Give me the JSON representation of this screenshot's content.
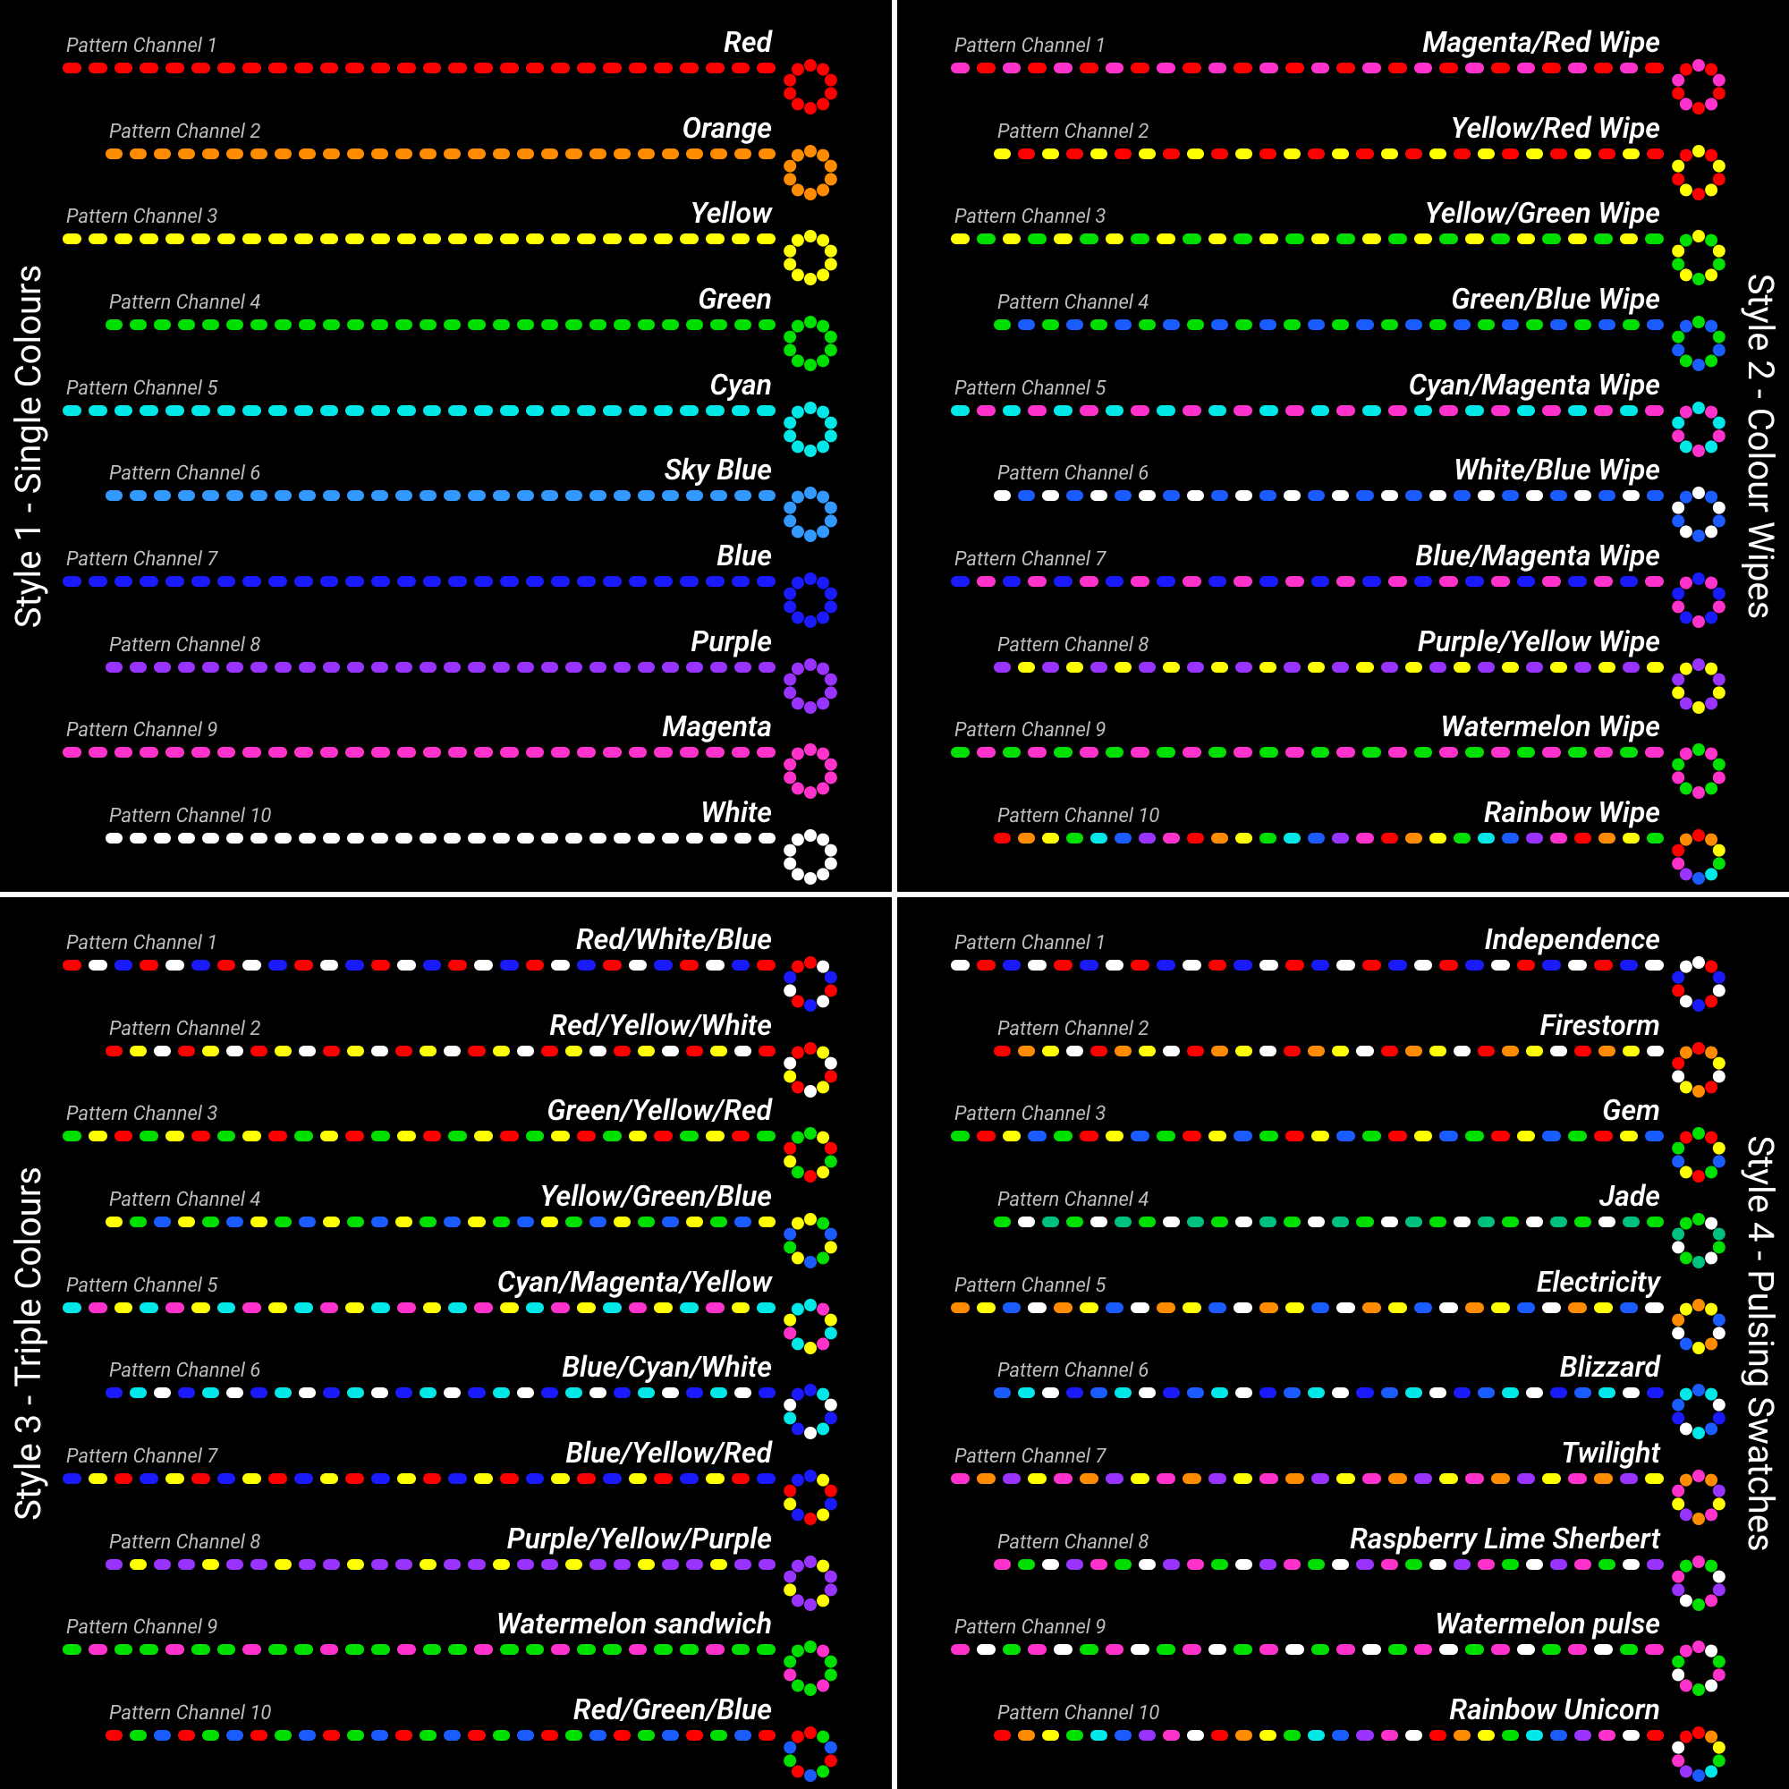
{
  "dashesPerStrip": 28,
  "loopSegments": 10,
  "panels": [
    {
      "id": "style1",
      "title": "Style 1 - Single Colours",
      "labelSide": "left",
      "rows": [
        {
          "channel": "Pattern Channel 1",
          "name": "Red",
          "colors": [
            "#ff0000"
          ]
        },
        {
          "channel": "Pattern Channel 2",
          "name": "Orange",
          "colors": [
            "#ff8c00"
          ]
        },
        {
          "channel": "Pattern Channel 3",
          "name": "Yellow",
          "colors": [
            "#ffff00"
          ]
        },
        {
          "channel": "Pattern Channel 4",
          "name": "Green",
          "colors": [
            "#00e000"
          ]
        },
        {
          "channel": "Pattern Channel 5",
          "name": "Cyan",
          "colors": [
            "#00e8e8"
          ]
        },
        {
          "channel": "Pattern Channel 6",
          "name": "Sky Blue",
          "colors": [
            "#3399ff"
          ]
        },
        {
          "channel": "Pattern Channel 7",
          "name": "Blue",
          "colors": [
            "#1a1aff"
          ]
        },
        {
          "channel": "Pattern Channel 8",
          "name": "Purple",
          "colors": [
            "#9933ff"
          ]
        },
        {
          "channel": "Pattern Channel 9",
          "name": "Magenta",
          "colors": [
            "#ff33cc"
          ]
        },
        {
          "channel": "Pattern Channel 10",
          "name": "White",
          "colors": [
            "#ffffff"
          ]
        }
      ]
    },
    {
      "id": "style2",
      "title": "Style 2 - Colour Wipes",
      "labelSide": "right",
      "rows": [
        {
          "channel": "Pattern Channel 1",
          "name": "Magenta/Red Wipe",
          "colors": [
            "#ff33cc",
            "#ff0000"
          ]
        },
        {
          "channel": "Pattern Channel 2",
          "name": "Yellow/Red Wipe",
          "colors": [
            "#ffff00",
            "#ff0000"
          ]
        },
        {
          "channel": "Pattern Channel 3",
          "name": "Yellow/Green Wipe",
          "colors": [
            "#ffff00",
            "#00e000"
          ]
        },
        {
          "channel": "Pattern Channel 4",
          "name": "Green/Blue Wipe",
          "colors": [
            "#00e000",
            "#1a5cff"
          ]
        },
        {
          "channel": "Pattern Channel 5",
          "name": "Cyan/Magenta Wipe",
          "colors": [
            "#00e8e8",
            "#ff33cc"
          ]
        },
        {
          "channel": "Pattern Channel 6",
          "name": "White/Blue Wipe",
          "colors": [
            "#ffffff",
            "#1a5cff"
          ]
        },
        {
          "channel": "Pattern Channel 7",
          "name": "Blue/Magenta Wipe",
          "colors": [
            "#1a1aff",
            "#ff33cc"
          ]
        },
        {
          "channel": "Pattern Channel 8",
          "name": "Purple/Yellow Wipe",
          "colors": [
            "#9933ff",
            "#ffff00"
          ]
        },
        {
          "channel": "Pattern Channel 9",
          "name": "Watermelon Wipe",
          "colors": [
            "#00e000",
            "#ff33cc"
          ]
        },
        {
          "channel": "Pattern Channel 10",
          "name": "Rainbow Wipe",
          "colors": [
            "#ff0000",
            "#ff8c00",
            "#ffff00",
            "#00e000",
            "#00e8e8",
            "#1a5cff",
            "#9933ff",
            "#ff33cc"
          ]
        }
      ]
    },
    {
      "id": "style3",
      "title": "Style 3 - Triple Colours",
      "labelSide": "left",
      "rows": [
        {
          "channel": "Pattern Channel 1",
          "name": "Red/White/Blue",
          "colors": [
            "#ff0000",
            "#ffffff",
            "#1a1aff"
          ]
        },
        {
          "channel": "Pattern Channel 2",
          "name": "Red/Yellow/White",
          "colors": [
            "#ff0000",
            "#ffff00",
            "#ffffff"
          ]
        },
        {
          "channel": "Pattern Channel 3",
          "name": "Green/Yellow/Red",
          "colors": [
            "#00e000",
            "#ffff00",
            "#ff0000"
          ]
        },
        {
          "channel": "Pattern Channel 4",
          "name": "Yellow/Green/Blue",
          "colors": [
            "#ffff00",
            "#00e000",
            "#1a5cff"
          ]
        },
        {
          "channel": "Pattern Channel 5",
          "name": "Cyan/Magenta/Yellow",
          "colors": [
            "#00e8e8",
            "#ff33cc",
            "#ffff00"
          ]
        },
        {
          "channel": "Pattern Channel 6",
          "name": "Blue/Cyan/White",
          "colors": [
            "#1a1aff",
            "#00e8e8",
            "#ffffff"
          ]
        },
        {
          "channel": "Pattern Channel 7",
          "name": "Blue/Yellow/Red",
          "colors": [
            "#1a1aff",
            "#ffff00",
            "#ff0000"
          ]
        },
        {
          "channel": "Pattern Channel 8",
          "name": "Purple/Yellow/Purple",
          "colors": [
            "#9933ff",
            "#ffff00",
            "#9933ff"
          ]
        },
        {
          "channel": "Pattern Channel 9",
          "name": "Watermelon sandwich",
          "colors": [
            "#00e000",
            "#ff33cc",
            "#00e000"
          ]
        },
        {
          "channel": "Pattern Channel 10",
          "name": "Red/Green/Blue",
          "colors": [
            "#ff0000",
            "#00e000",
            "#1a5cff"
          ]
        }
      ]
    },
    {
      "id": "style4",
      "title": "Style 4 - Pulsing Swatches",
      "labelSide": "right",
      "rows": [
        {
          "channel": "Pattern Channel 1",
          "name": "Independence",
          "colors": [
            "#ffffff",
            "#ff0000",
            "#1a1aff"
          ]
        },
        {
          "channel": "Pattern Channel 2",
          "name": "Firestorm",
          "colors": [
            "#ff0000",
            "#ff8c00",
            "#ffff00",
            "#ffffff"
          ]
        },
        {
          "channel": "Pattern Channel 3",
          "name": "Gem",
          "colors": [
            "#00e000",
            "#ff0000",
            "#ffff00",
            "#1a5cff"
          ]
        },
        {
          "channel": "Pattern Channel 4",
          "name": "Jade",
          "colors": [
            "#00e000",
            "#ffffff",
            "#00c080"
          ]
        },
        {
          "channel": "Pattern Channel 5",
          "name": "Electricity",
          "colors": [
            "#ff8c00",
            "#ffff00",
            "#1a5cff",
            "#ffffff"
          ]
        },
        {
          "channel": "Pattern Channel 6",
          "name": "Blizzard",
          "colors": [
            "#1a5cff",
            "#00e8e8",
            "#ffffff",
            "#1a1aff"
          ]
        },
        {
          "channel": "Pattern Channel 7",
          "name": "Twilight",
          "colors": [
            "#ff33cc",
            "#ff8c00",
            "#9933ff",
            "#ffff00"
          ]
        },
        {
          "channel": "Pattern Channel 8",
          "name": "Raspberry Lime Sherbert",
          "colors": [
            "#ff33cc",
            "#00e000",
            "#ffffff",
            "#9933ff"
          ]
        },
        {
          "channel": "Pattern Channel 9",
          "name": "Watermelon pulse",
          "colors": [
            "#ff33cc",
            "#ffffff",
            "#00e000"
          ]
        },
        {
          "channel": "Pattern Channel 10",
          "name": "Rainbow Unicorn",
          "colors": [
            "#ff0000",
            "#ff8c00",
            "#ffff00",
            "#00e000",
            "#00e8e8",
            "#1a5cff",
            "#9933ff",
            "#ff33cc",
            "#ffffff"
          ]
        }
      ]
    }
  ]
}
